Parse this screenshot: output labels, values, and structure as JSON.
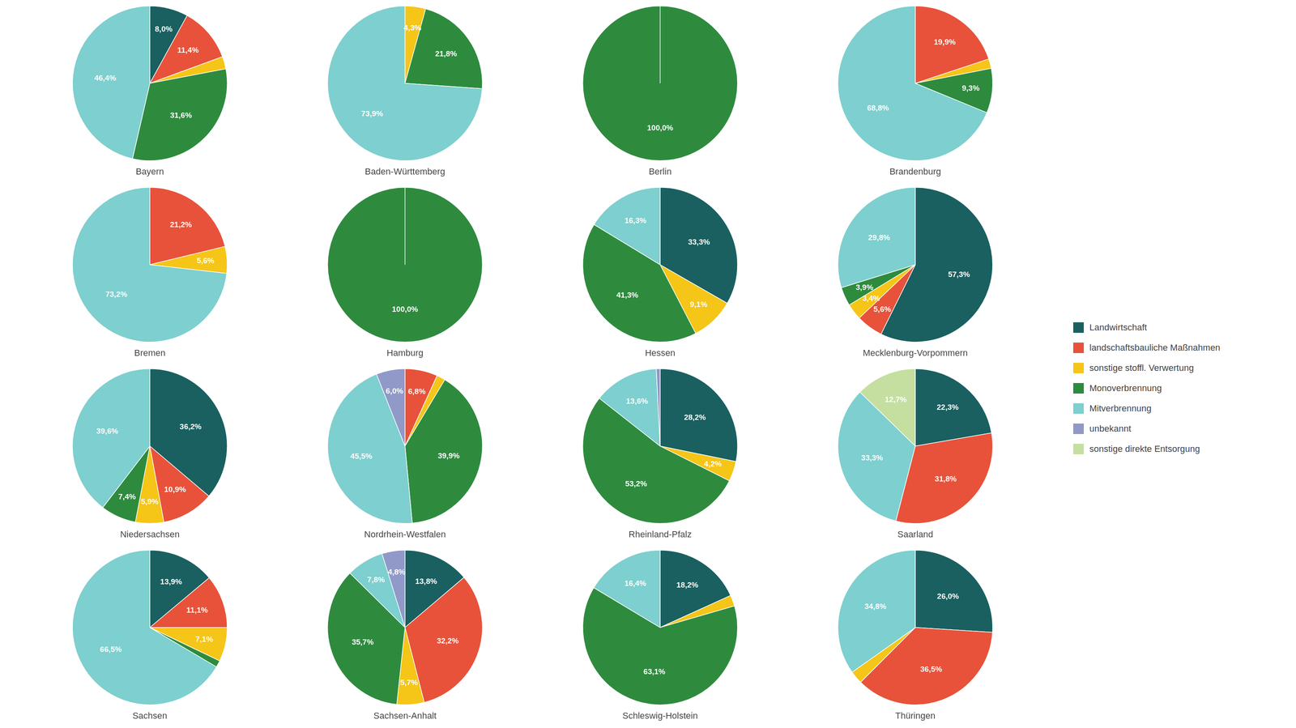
{
  "chart_data": [
    {
      "type": "pie",
      "title": "Bayern",
      "categories": [
        "Landwirtschaft",
        "landschaftsbauliche Maßnahmen",
        "sonstige stoffl. Verwertung",
        "Monoverbrennung",
        "Mitverbrennung"
      ],
      "values": [
        8.0,
        11.4,
        2.6,
        31.6,
        46.4
      ],
      "value_labels": [
        "8,0%",
        "11,4%",
        null,
        "31,6%",
        "46,4%"
      ],
      "colors": [
        "#1a6060",
        "#e8523a",
        "#f5c518",
        "#2e8b3e",
        "#7ecfcf"
      ],
      "data_labels": true,
      "legend": "right"
    },
    {
      "type": "pie",
      "title": "Baden-Württemberg",
      "categories": [
        "sonstige stoffl. Verwertung",
        "Monoverbrennung",
        "Mitverbrennung"
      ],
      "values": [
        4.3,
        21.8,
        73.9
      ],
      "value_labels": [
        "4,3%",
        "21,8%",
        "73,9%"
      ],
      "colors": [
        "#f5c518",
        "#2e8b3e",
        "#7ecfcf"
      ],
      "data_labels": true,
      "legend": "right"
    },
    {
      "type": "pie",
      "title": "Berlin",
      "categories": [
        "Monoverbrennung"
      ],
      "values": [
        100.0
      ],
      "value_labels": [
        "100,0%"
      ],
      "colors": [
        "#2e8b3e"
      ],
      "data_labels": true,
      "legend": "right"
    },
    {
      "type": "pie",
      "title": "Brandenburg",
      "categories": [
        "landschaftsbauliche Maßnahmen",
        "sonstige stoffl. Verwertung",
        "Monoverbrennung",
        "Mitverbrennung"
      ],
      "values": [
        19.9,
        2.0,
        9.3,
        68.8
      ],
      "value_labels": [
        "19,9%",
        null,
        "9,3%",
        "68,8%"
      ],
      "colors": [
        "#e8523a",
        "#f5c518",
        "#2e8b3e",
        "#7ecfcf"
      ],
      "data_labels": true,
      "legend": "right"
    },
    {
      "type": "pie",
      "title": "Bremen",
      "categories": [
        "landschaftsbauliche Maßnahmen",
        "sonstige stoffl. Verwertung",
        "Mitverbrennung"
      ],
      "values": [
        21.2,
        5.6,
        73.2
      ],
      "value_labels": [
        "21,2%",
        "5,6%",
        "73,2%"
      ],
      "colors": [
        "#e8523a",
        "#f5c518",
        "#7ecfcf"
      ],
      "data_labels": true,
      "legend": "right"
    },
    {
      "type": "pie",
      "title": "Hamburg",
      "categories": [
        "Monoverbrennung"
      ],
      "values": [
        100.0
      ],
      "value_labels": [
        "100,0%"
      ],
      "colors": [
        "#2e8b3e"
      ],
      "data_labels": true,
      "legend": "right"
    },
    {
      "type": "pie",
      "title": "Hessen",
      "categories": [
        "Landwirtschaft",
        "sonstige stoffl. Verwertung",
        "Monoverbrennung",
        "Mitverbrennung"
      ],
      "values": [
        33.3,
        9.1,
        41.3,
        16.3
      ],
      "value_labels": [
        "33,3%",
        "9,1%",
        "41,3%",
        "16,3%"
      ],
      "colors": [
        "#1a6060",
        "#f5c518",
        "#2e8b3e",
        "#7ecfcf"
      ],
      "data_labels": true,
      "legend": "right"
    },
    {
      "type": "pie",
      "title": "Mecklenburg-Vorpommern",
      "categories": [
        "Landwirtschaft",
        "landschaftsbauliche Maßnahmen",
        "sonstige stoffl. Verwertung",
        "Monoverbrennung",
        "Mitverbrennung"
      ],
      "values": [
        57.3,
        5.6,
        3.4,
        3.9,
        29.8
      ],
      "value_labels": [
        "57,3%",
        "5,6%",
        "3,4%",
        "3,9%",
        "29,8%"
      ],
      "colors": [
        "#1a6060",
        "#e8523a",
        "#f5c518",
        "#2e8b3e",
        "#7ecfcf"
      ],
      "data_labels": true,
      "legend": "right"
    },
    {
      "type": "pie",
      "title": "Niedersachsen",
      "categories": [
        "Landwirtschaft",
        "landschaftsbauliche Maßnahmen",
        "sonstige stoffl. Verwertung",
        "Monoverbrennung",
        "Mitverbrennung"
      ],
      "values": [
        36.2,
        10.9,
        5.9,
        7.4,
        39.6
      ],
      "value_labels": [
        "36,2%",
        "10,9%",
        "5,9%",
        "7,4%",
        "39,6%"
      ],
      "colors": [
        "#1a6060",
        "#e8523a",
        "#f5c518",
        "#2e8b3e",
        "#7ecfcf"
      ],
      "data_labels": true,
      "legend": "right"
    },
    {
      "type": "pie",
      "title": "Nordrhein-Westfalen",
      "categories": [
        "landschaftsbauliche Maßnahmen",
        "sonstige stoffl. Verwertung",
        "Monoverbrennung",
        "Mitverbrennung",
        "unbekannt"
      ],
      "values": [
        6.8,
        1.8,
        39.9,
        45.5,
        6.0
      ],
      "value_labels": [
        "6,8%",
        null,
        "39,9%",
        "45,5%",
        "6,0%"
      ],
      "colors": [
        "#e8523a",
        "#f5c518",
        "#2e8b3e",
        "#7ecfcf",
        "#9099c8"
      ],
      "data_labels": true,
      "legend": "right"
    },
    {
      "type": "pie",
      "title": "Rheinland-Pfalz",
      "categories": [
        "Landwirtschaft",
        "sonstige stoffl. Verwertung",
        "Monoverbrennung",
        "Mitverbrennung",
        "unbekannt"
      ],
      "values": [
        28.2,
        4.2,
        53.2,
        13.6,
        0.8
      ],
      "value_labels": [
        "28,2%",
        "4,2%",
        "53,2%",
        "13,6%",
        null
      ],
      "colors": [
        "#1a6060",
        "#f5c518",
        "#2e8b3e",
        "#7ecfcf",
        "#9099c8"
      ],
      "data_labels": true,
      "legend": "right"
    },
    {
      "type": "pie",
      "title": "Saarland",
      "categories": [
        "Landwirtschaft",
        "landschaftsbauliche Maßnahmen",
        "Mitverbrennung",
        "sonstige direkte Entsorgung"
      ],
      "values": [
        22.3,
        31.8,
        33.3,
        12.7
      ],
      "value_labels": [
        "22,3%",
        "31,8%",
        "33,3%",
        "12,7%"
      ],
      "colors": [
        "#1a6060",
        "#e8523a",
        "#7ecfcf",
        "#c5dfa0"
      ],
      "data_labels": true,
      "legend": "right"
    },
    {
      "type": "pie",
      "title": "Sachsen",
      "categories": [
        "Landwirtschaft",
        "landschaftsbauliche Maßnahmen",
        "sonstige stoffl. Verwertung",
        "Monoverbrennung",
        "Mitverbrennung"
      ],
      "values": [
        13.9,
        11.1,
        7.1,
        1.4,
        66.5
      ],
      "value_labels": [
        "13,9%",
        "11,1%",
        "7,1%",
        null,
        "66,5%"
      ],
      "colors": [
        "#1a6060",
        "#e8523a",
        "#f5c518",
        "#2e8b3e",
        "#7ecfcf"
      ],
      "data_labels": true,
      "legend": "right"
    },
    {
      "type": "pie",
      "title": "Sachsen-Anhalt",
      "categories": [
        "Landwirtschaft",
        "landschaftsbauliche Maßnahmen",
        "sonstige stoffl. Verwertung",
        "Monoverbrennung",
        "Mitverbrennung",
        "unbekannt"
      ],
      "values": [
        13.8,
        32.2,
        5.7,
        35.7,
        7.8,
        4.8
      ],
      "value_labels": [
        "13,8%",
        "32,2%",
        "5,7%",
        "35,7%",
        "7,8%",
        "4,8%"
      ],
      "colors": [
        "#1a6060",
        "#e8523a",
        "#f5c518",
        "#2e8b3e",
        "#7ecfcf",
        "#9099c8"
      ],
      "data_labels": true,
      "legend": "right"
    },
    {
      "type": "pie",
      "title": "Schleswig-Holstein",
      "categories": [
        "Landwirtschaft",
        "sonstige stoffl. Verwertung",
        "Monoverbrennung",
        "Mitverbrennung"
      ],
      "values": [
        18.2,
        2.3,
        63.1,
        16.4
      ],
      "value_labels": [
        "18,2%",
        null,
        "63,1%",
        "16,4%"
      ],
      "colors": [
        "#1a6060",
        "#f5c518",
        "#2e8b3e",
        "#7ecfcf"
      ],
      "data_labels": true,
      "legend": "right"
    },
    {
      "type": "pie",
      "title": "Thüringen",
      "categories": [
        "Landwirtschaft",
        "landschaftsbauliche Maßnahmen",
        "sonstige stoffl. Verwertung",
        "Mitverbrennung"
      ],
      "values": [
        26.0,
        36.5,
        2.7,
        34.8
      ],
      "value_labels": [
        "26,0%",
        "36,5%",
        null,
        "34,8%"
      ],
      "colors": [
        "#1a6060",
        "#e8523a",
        "#f5c518",
        "#7ecfcf"
      ],
      "data_labels": true,
      "legend": "right"
    }
  ]
}
